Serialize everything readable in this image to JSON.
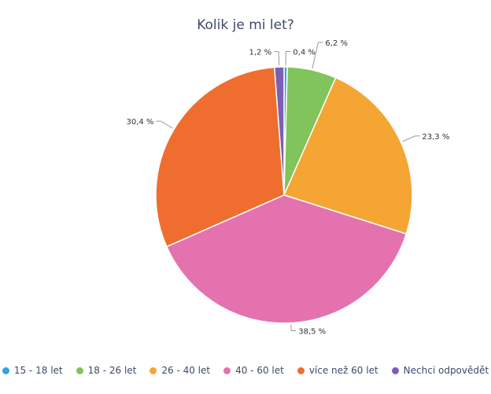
{
  "chart_data": {
    "type": "pie",
    "title": "Kolik je mi let?",
    "slices": [
      {
        "label": "15 - 18 let",
        "value": 0.4,
        "value_label": "0,4 %",
        "color": "#2fa6e0"
      },
      {
        "label": "18 - 26 let",
        "value": 6.2,
        "value_label": "6,2 %",
        "color": "#82c45c"
      },
      {
        "label": "26 - 40 let",
        "value": 23.3,
        "value_label": "23,3 %",
        "color": "#f5a534"
      },
      {
        "label": "40 - 60 let",
        "value": 38.5,
        "value_label": "38,5 %",
        "color": "#e472ae"
      },
      {
        "label": "více než 60 let",
        "value": 30.4,
        "value_label": "30,4 %",
        "color": "#ef6e2f"
      },
      {
        "label": "Nechci odpovědět",
        "value": 1.2,
        "value_label": "1,2 %",
        "color": "#7c5fb1"
      }
    ],
    "legend_position": "bottom"
  }
}
